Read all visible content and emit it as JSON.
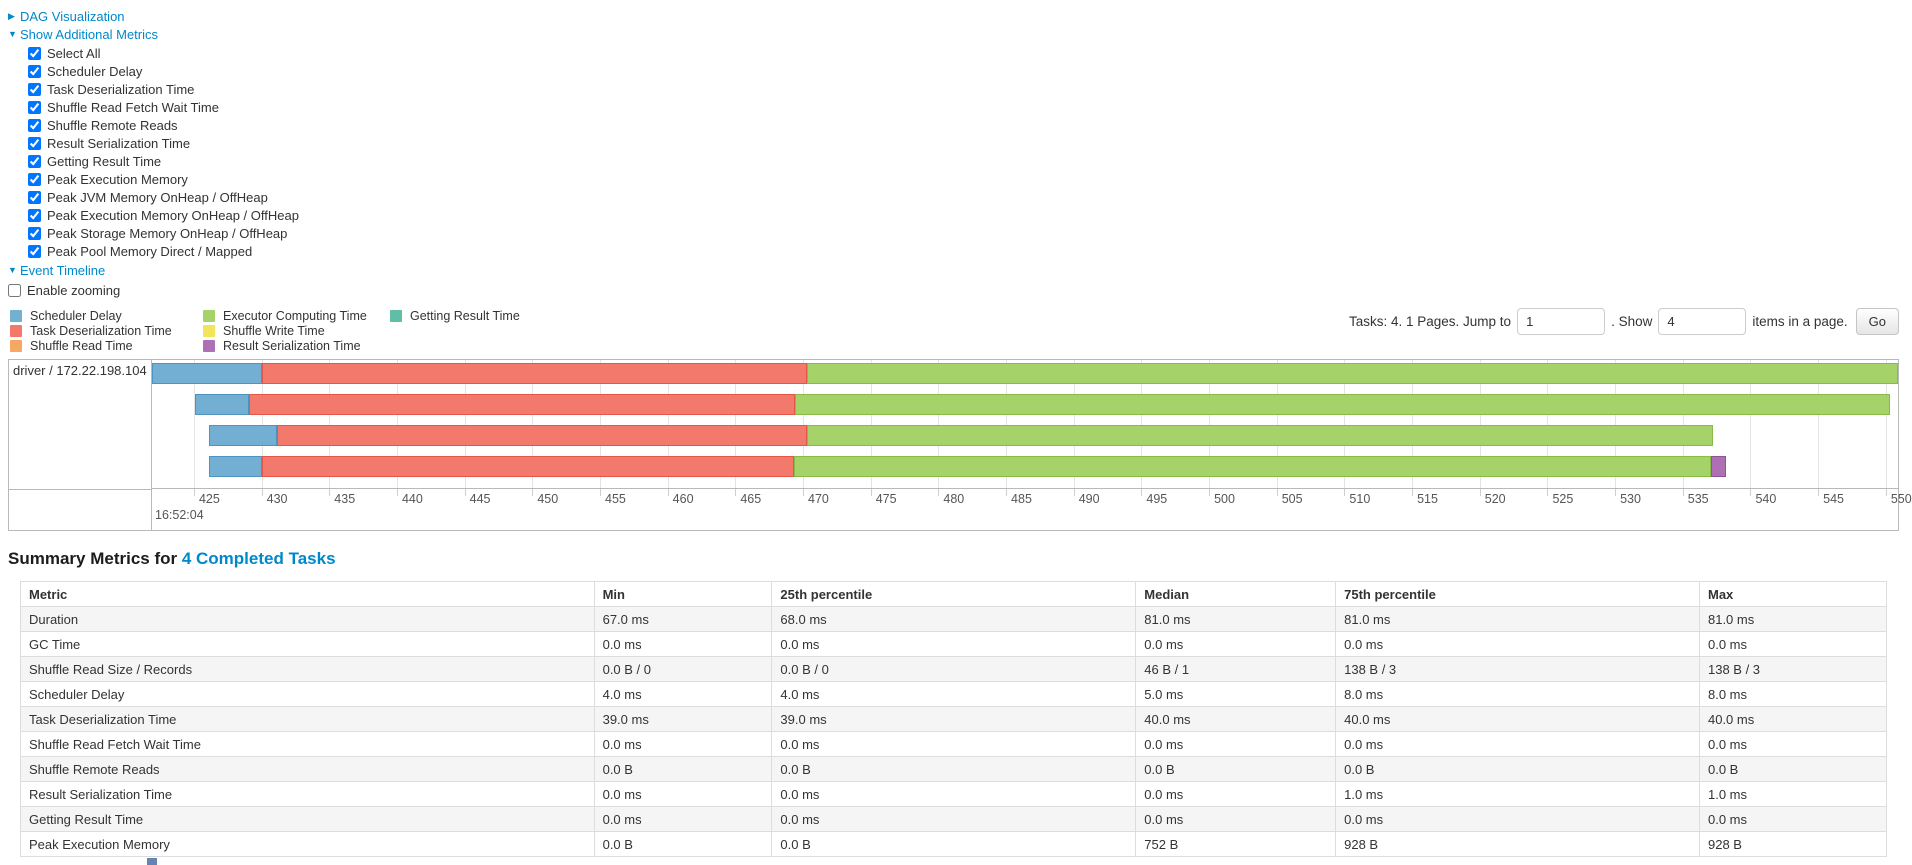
{
  "sections": {
    "dag": {
      "label": "DAG Visualization",
      "state": "collapsed",
      "arrow": "▶"
    },
    "metrics": {
      "label": "Show Additional Metrics",
      "state": "expanded",
      "arrow": "▼"
    },
    "timeline": {
      "label": "Event Timeline",
      "state": "expanded",
      "arrow": "▼"
    }
  },
  "metrics_checkboxes": [
    {
      "label": "Select All",
      "checked": true
    },
    {
      "label": "Scheduler Delay",
      "checked": true
    },
    {
      "label": "Task Deserialization Time",
      "checked": true
    },
    {
      "label": "Shuffle Read Fetch Wait Time",
      "checked": true
    },
    {
      "label": "Shuffle Remote Reads",
      "checked": true
    },
    {
      "label": "Result Serialization Time",
      "checked": true
    },
    {
      "label": "Getting Result Time",
      "checked": true
    },
    {
      "label": "Peak Execution Memory",
      "checked": true
    },
    {
      "label": "Peak JVM Memory OnHeap / OffHeap",
      "checked": true
    },
    {
      "label": "Peak Execution Memory OnHeap / OffHeap",
      "checked": true
    },
    {
      "label": "Peak Storage Memory OnHeap / OffHeap",
      "checked": true
    },
    {
      "label": "Peak Pool Memory Direct / Mapped",
      "checked": true
    }
  ],
  "enable_zooming": {
    "label": "Enable zooming",
    "checked": false
  },
  "paginator": {
    "tasks_text": "Tasks: 4. 1 Pages. Jump to",
    "jump_value": "1",
    "show_text": ". Show",
    "show_value": "4",
    "items_text": "items in a page.",
    "go_label": "Go"
  },
  "chart_data": {
    "type": "timeline",
    "group_label": "driver / 172.22.198.104",
    "axis": {
      "min": 421.9,
      "max": 550.9,
      "tick_start": 425,
      "tick_step": 5,
      "tick_end": 550,
      "major_label": "16:52:04",
      "unit": "ms within second 16:52:04"
    },
    "series": [
      {
        "key": "scheduler_delay",
        "label": "Scheduler Delay",
        "fill": "#73AFD2",
        "border": "#4E94BE"
      },
      {
        "key": "task_deserialization",
        "label": "Task Deserialization Time",
        "fill": "#F4796D",
        "border": "#E35649"
      },
      {
        "key": "shuffle_read",
        "label": "Shuffle Read Time",
        "fill": "#F6A762",
        "border": "#E8893B"
      },
      {
        "key": "executor_computing",
        "label": "Executor Computing Time",
        "fill": "#A5D36A",
        "border": "#89BC47"
      },
      {
        "key": "shuffle_write",
        "label": "Shuffle Write Time",
        "fill": "#F3E55B",
        "border": "#DCCB2F"
      },
      {
        "key": "result_serialization",
        "label": "Result Serialization Time",
        "fill": "#AE70B4",
        "border": "#92519B"
      },
      {
        "key": "getting_result",
        "label": "Getting Result Time",
        "fill": "#5FBFA6",
        "border": "#3FA88C"
      }
    ],
    "tasks": [
      {
        "segments": [
          {
            "kind": "scheduler_delay",
            "start": 421.9,
            "end": 430.0
          },
          {
            "kind": "task_deserialization",
            "start": 430.0,
            "end": 470.3
          },
          {
            "kind": "executor_computing",
            "start": 470.3,
            "end": 550.9
          }
        ]
      },
      {
        "segments": [
          {
            "kind": "scheduler_delay",
            "start": 425.1,
            "end": 429.1
          },
          {
            "kind": "task_deserialization",
            "start": 429.1,
            "end": 469.4
          },
          {
            "kind": "executor_computing",
            "start": 469.4,
            "end": 550.3
          }
        ]
      },
      {
        "segments": [
          {
            "kind": "scheduler_delay",
            "start": 426.1,
            "end": 431.1
          },
          {
            "kind": "task_deserialization",
            "start": 431.1,
            "end": 470.3
          },
          {
            "kind": "executor_computing",
            "start": 470.3,
            "end": 537.2
          }
        ]
      },
      {
        "segments": [
          {
            "kind": "scheduler_delay",
            "start": 426.1,
            "end": 430.0
          },
          {
            "kind": "task_deserialization",
            "start": 430.0,
            "end": 469.3
          },
          {
            "kind": "executor_computing",
            "start": 469.3,
            "end": 537.1
          },
          {
            "kind": "result_serialization",
            "start": 537.1,
            "end": 538.2
          }
        ]
      }
    ]
  },
  "summary": {
    "title_prefix": "Summary Metrics for ",
    "title_link": "4 Completed Tasks"
  },
  "table": {
    "col_widths": [
      "30.74%",
      "9.53%",
      "19.50%",
      "10.71%",
      "19.50%",
      "10.02%"
    ],
    "headers": [
      "Metric",
      "Min",
      "25th percentile",
      "Median",
      "75th percentile",
      "Max"
    ],
    "rows": [
      [
        "Duration",
        "67.0 ms",
        "68.0 ms",
        "81.0 ms",
        "81.0 ms",
        "81.0 ms"
      ],
      [
        "GC Time",
        "0.0 ms",
        "0.0 ms",
        "0.0 ms",
        "0.0 ms",
        "0.0 ms"
      ],
      [
        "Shuffle Read Size / Records",
        "0.0 B / 0",
        "0.0 B / 0",
        "46 B / 1",
        "138 B / 3",
        "138 B / 3"
      ],
      [
        "Scheduler Delay",
        "4.0 ms",
        "4.0 ms",
        "5.0 ms",
        "8.0 ms",
        "8.0 ms"
      ],
      [
        "Task Deserialization Time",
        "39.0 ms",
        "39.0 ms",
        "40.0 ms",
        "40.0 ms",
        "40.0 ms"
      ],
      [
        "Shuffle Read Fetch Wait Time",
        "0.0 ms",
        "0.0 ms",
        "0.0 ms",
        "0.0 ms",
        "0.0 ms"
      ],
      [
        "Shuffle Remote Reads",
        "0.0 B",
        "0.0 B",
        "0.0 B",
        "0.0 B",
        "0.0 B"
      ],
      [
        "Result Serialization Time",
        "0.0 ms",
        "0.0 ms",
        "0.0 ms",
        "1.0 ms",
        "1.0 ms"
      ],
      [
        "Getting Result Time",
        "0.0 ms",
        "0.0 ms",
        "0.0 ms",
        "0.0 ms",
        "0.0 ms"
      ],
      [
        "Peak Execution Memory",
        "0.0 B",
        "0.0 B",
        "752 B",
        "928 B",
        "928 B"
      ]
    ]
  }
}
